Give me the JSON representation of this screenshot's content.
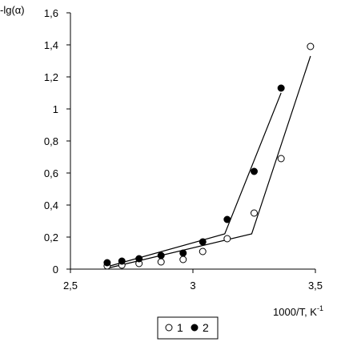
{
  "chart_data": {
    "type": "scatter",
    "title": "",
    "ylabel": "-lg(α)",
    "xlabel": "1000/T, K",
    "xlabel_sup": "-1",
    "xlim": [
      2.5,
      3.5
    ],
    "ylim": [
      0,
      1.6
    ],
    "x_ticks": [
      {
        "value": 2.5,
        "label": "2,5"
      },
      {
        "value": 3.0,
        "label": "3"
      },
      {
        "value": 3.5,
        "label": "3,5"
      }
    ],
    "y_ticks": [
      {
        "value": 0,
        "label": "0"
      },
      {
        "value": 0.2,
        "label": "0,2"
      },
      {
        "value": 0.4,
        "label": "0,4"
      },
      {
        "value": 0.6,
        "label": "0,6"
      },
      {
        "value": 0.8,
        "label": "0,8"
      },
      {
        "value": 1.0,
        "label": "1"
      },
      {
        "value": 1.2,
        "label": "1,2"
      },
      {
        "value": 1.4,
        "label": "1,4"
      },
      {
        "value": 1.6,
        "label": "1,6"
      }
    ],
    "grid": false,
    "legend_position": "bottom-center",
    "series": [
      {
        "name": "1",
        "marker": "open-circle",
        "color": "#000000",
        "points": [
          {
            "x": 2.65,
            "y": 0.02
          },
          {
            "x": 2.71,
            "y": 0.025
          },
          {
            "x": 2.78,
            "y": 0.035
          },
          {
            "x": 2.87,
            "y": 0.045
          },
          {
            "x": 2.96,
            "y": 0.06
          },
          {
            "x": 3.04,
            "y": 0.11
          },
          {
            "x": 3.14,
            "y": 0.19
          },
          {
            "x": 3.25,
            "y": 0.35
          },
          {
            "x": 3.36,
            "y": 0.69
          },
          {
            "x": 3.48,
            "y": 1.39
          }
        ],
        "fit_line": [
          {
            "x": 2.65,
            "y": 0.005
          },
          {
            "x": 3.24,
            "y": 0.22
          },
          {
            "x": 3.48,
            "y": 1.33
          }
        ]
      },
      {
        "name": "2",
        "marker": "filled-circle",
        "color": "#000000",
        "points": [
          {
            "x": 2.65,
            "y": 0.04
          },
          {
            "x": 2.71,
            "y": 0.05
          },
          {
            "x": 2.78,
            "y": 0.065
          },
          {
            "x": 2.87,
            "y": 0.085
          },
          {
            "x": 2.96,
            "y": 0.1
          },
          {
            "x": 3.04,
            "y": 0.17
          },
          {
            "x": 3.14,
            "y": 0.31
          },
          {
            "x": 3.25,
            "y": 0.61
          },
          {
            "x": 3.36,
            "y": 1.13
          }
        ],
        "fit_line": [
          {
            "x": 2.65,
            "y": 0.015
          },
          {
            "x": 3.13,
            "y": 0.22
          },
          {
            "x": 3.36,
            "y": 1.1
          }
        ]
      }
    ]
  }
}
